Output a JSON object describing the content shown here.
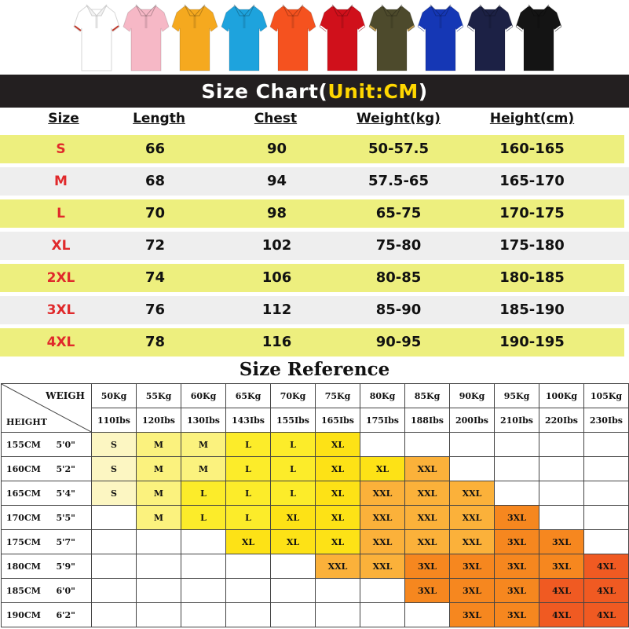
{
  "shirts": [
    {
      "name": "white",
      "color": "#ffffff",
      "collar": "#f2f2f2",
      "tip": "#c0392b"
    },
    {
      "name": "pink",
      "color": "#f6b8c6",
      "collar": "#f6b8c6",
      "tip": "#f6b8c6"
    },
    {
      "name": "yellow",
      "color": "#f5a91f",
      "collar": "#f5a91f",
      "tip": "#f5a91f"
    },
    {
      "name": "sky-blue",
      "color": "#1ea3dd",
      "collar": "#1ea3dd",
      "tip": "#1ea3dd"
    },
    {
      "name": "orange",
      "color": "#f5521f",
      "collar": "#f5521f",
      "tip": "#f5521f"
    },
    {
      "name": "red",
      "color": "#d0101b",
      "collar": "#d0101b",
      "tip": "#ffffff"
    },
    {
      "name": "army-green",
      "color": "#4d4a2c",
      "collar": "#4d4a2c",
      "tip": "#c8a25a"
    },
    {
      "name": "royal-blue",
      "color": "#1537b5",
      "collar": "#1537b5",
      "tip": "#ffffff"
    },
    {
      "name": "navy",
      "color": "#1c2145",
      "collar": "#1c2145",
      "tip": "#ffffff"
    },
    {
      "name": "black",
      "color": "#141414",
      "collar": "#141414",
      "tip": "#ffffff"
    }
  ],
  "chart": {
    "title_main": "Size Chart(",
    "title_unit": "Unit:CM",
    "title_close": ")",
    "headers": [
      "Size",
      "Length",
      "Chest",
      "Weight(kg)",
      "Height(cm)"
    ],
    "rows": [
      {
        "size": "S",
        "length": "66",
        "chest": "90",
        "weight": "50-57.5",
        "height": "160-165"
      },
      {
        "size": "M",
        "length": "68",
        "chest": "94",
        "weight": "57.5-65",
        "height": "165-170"
      },
      {
        "size": "L",
        "length": "70",
        "chest": "98",
        "weight": "65-75",
        "height": "170-175"
      },
      {
        "size": "XL",
        "length": "72",
        "chest": "102",
        "weight": "75-80",
        "height": "175-180"
      },
      {
        "size": "2XL",
        "length": "74",
        "chest": "106",
        "weight": "80-85",
        "height": "180-185"
      },
      {
        "size": "3XL",
        "length": "76",
        "chest": "112",
        "weight": "85-90",
        "height": "185-190"
      },
      {
        "size": "4XL",
        "length": "78",
        "chest": "116",
        "weight": "90-95",
        "height": "190-195"
      }
    ],
    "colors": {
      "yellow_row": "#edef7e",
      "gray_row": "#eeeeee",
      "size_text": "#e0292b"
    }
  },
  "reference": {
    "title": "Size Reference",
    "corner_top": "WEIGH",
    "corner_bottom": "HEIGHT",
    "weights_kg": [
      "50Kg",
      "55Kg",
      "60Kg",
      "65Kg",
      "70Kg",
      "75Kg",
      "80Kg",
      "85Kg",
      "90Kg",
      "95Kg",
      "100Kg",
      "105Kg"
    ],
    "weights_lbs": [
      "110Ibs",
      "120Ibs",
      "130Ibs",
      "143Ibs",
      "155Ibs",
      "165Ibs",
      "175Ibs",
      "188Ibs",
      "200Ibs",
      "210Ibs",
      "220Ibs",
      "230Ibs"
    ],
    "rows": [
      {
        "cm": "155CM",
        "ft": "5'0\"",
        "cells": [
          "S",
          "M",
          "M",
          "L",
          "L",
          "XL",
          "",
          "",
          "",
          "",
          "",
          ""
        ]
      },
      {
        "cm": "160CM",
        "ft": "5'2\"",
        "cells": [
          "S",
          "M",
          "M",
          "L",
          "L",
          "XL",
          "XL",
          "XXL",
          "",
          "",
          "",
          ""
        ]
      },
      {
        "cm": "165CM",
        "ft": "5'4\"",
        "cells": [
          "S",
          "M",
          "L",
          "L",
          "L",
          "XL",
          "XXL",
          "XXL",
          "XXL",
          "",
          "",
          ""
        ]
      },
      {
        "cm": "170CM",
        "ft": "5'5\"",
        "cells": [
          "",
          "M",
          "L",
          "L",
          "XL",
          "XL",
          "XXL",
          "XXL",
          "XXL",
          "3XL",
          "",
          ""
        ]
      },
      {
        "cm": "175CM",
        "ft": "5'7\"",
        "cells": [
          "",
          "",
          "",
          "XL",
          "XL",
          "XL",
          "XXL",
          "XXL",
          "XXL",
          "3XL",
          "3XL",
          ""
        ]
      },
      {
        "cm": "180CM",
        "ft": "5'9\"",
        "cells": [
          "",
          "",
          "",
          "",
          "",
          "XXL",
          "XXL",
          "3XL",
          "3XL",
          "3XL",
          "3XL",
          "4XL"
        ]
      },
      {
        "cm": "185CM",
        "ft": "6'0\"",
        "cells": [
          "",
          "",
          "",
          "",
          "",
          "",
          "",
          "3XL",
          "3XL",
          "3XL",
          "4XL",
          "4XL"
        ]
      },
      {
        "cm": "190CM",
        "ft": "6'2\"",
        "cells": [
          "",
          "",
          "",
          "",
          "",
          "",
          "",
          "",
          "3XL",
          "3XL",
          "4XL",
          "4XL"
        ]
      }
    ],
    "size_colors": {
      "S": "#fcf6c2",
      "M": "#fbf27e",
      "L": "#fcec2a",
      "XL": "#fde216",
      "XXL": "#fbb13a",
      "3XL": "#f6871f",
      "4XL": "#f05a22"
    }
  }
}
